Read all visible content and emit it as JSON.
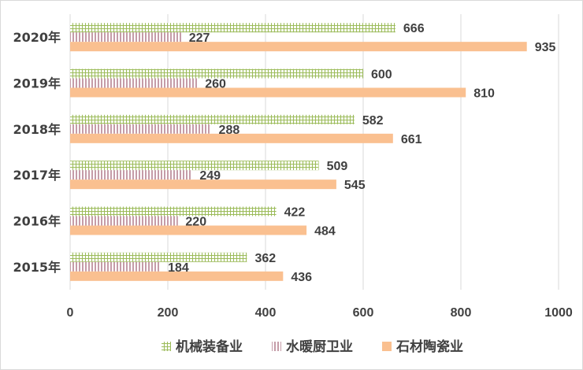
{
  "chart_data": {
    "type": "bar",
    "orientation": "horizontal",
    "categories": [
      "2015年",
      "2016年",
      "2017年",
      "2018年",
      "2019年",
      "2020年"
    ],
    "series": [
      {
        "name": "机械装备业",
        "values": [
          362,
          422,
          509,
          582,
          600,
          666
        ],
        "color": "#9bbb59",
        "pattern": "grid"
      },
      {
        "name": "水暖厨卫业",
        "values": [
          184,
          220,
          249,
          288,
          260,
          227
        ],
        "color": "#8b3a52",
        "pattern": "vertical-lines"
      },
      {
        "name": "石材陶瓷业",
        "values": [
          436,
          484,
          545,
          661,
          810,
          935
        ],
        "color": "#fac090",
        "pattern": "solid"
      }
    ],
    "xlim": [
      0,
      1000
    ],
    "xticks": [
      0,
      200,
      400,
      600,
      800,
      1000
    ],
    "grid": true,
    "legend_position": "bottom",
    "data_labels": true
  }
}
